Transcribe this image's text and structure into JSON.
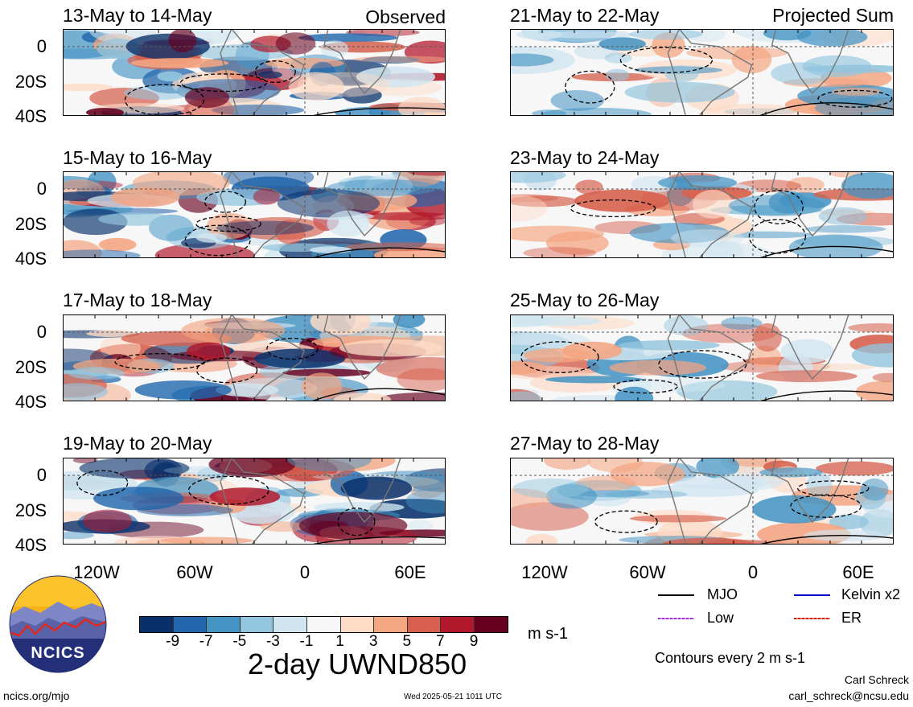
{
  "panels": [
    {
      "title": "13-May to 14-May",
      "tag": "Observed"
    },
    {
      "title": "15-May to 16-May",
      "tag": ""
    },
    {
      "title": "17-May to 18-May",
      "tag": ""
    },
    {
      "title": "19-May to 20-May",
      "tag": ""
    },
    {
      "title": "21-May to 22-May",
      "tag": "Projected Sum"
    },
    {
      "title": "23-May to 24-May",
      "tag": ""
    },
    {
      "title": "25-May to 26-May",
      "tag": ""
    },
    {
      "title": "27-May to 28-May",
      "tag": ""
    }
  ],
  "y_ticks": [
    "0",
    "20S",
    "40S"
  ],
  "x_ticks": [
    "120W",
    "60W",
    "0",
    "60E"
  ],
  "colorbar": {
    "colors": [
      "#08306b",
      "#2166ac",
      "#4393c3",
      "#92c5de",
      "#d1e5f0",
      "#f7f7f7",
      "#fddbc7",
      "#f4a582",
      "#d6604d",
      "#b2182b",
      "#67001f"
    ],
    "labels": [
      "-9",
      "-7",
      "-5",
      "-3",
      "-1",
      "1",
      "3",
      "5",
      "7",
      "9"
    ],
    "units": "m s-1",
    "title": "2-day UWND850"
  },
  "legend": {
    "items": [
      {
        "label": "MJO",
        "color": "#000000"
      },
      {
        "label": "Kelvin x2",
        "color": "#0000cc"
      },
      {
        "label": "Low",
        "color": "#a030e0"
      },
      {
        "label": "ER",
        "color": "#d02010"
      }
    ],
    "contours_note": "Contours every 2 m s-1"
  },
  "logo": {
    "text": "NCICS"
  },
  "footer": {
    "left": "ncics.org/mjo",
    "center": "Wed 2025-05-21 1011 UTC",
    "author": "Carl Schreck",
    "email": "carl_schreck@ncsu.edu"
  }
}
